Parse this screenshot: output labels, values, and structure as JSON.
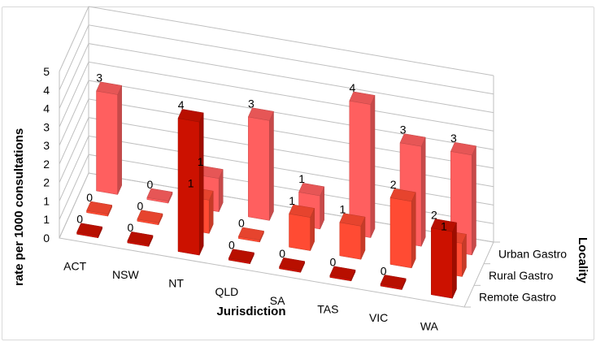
{
  "chart_data": {
    "type": "bar",
    "categories": [
      "ACT",
      "NSW",
      "NT",
      "QLD",
      "SA",
      "TAS",
      "VIC",
      "WA"
    ],
    "series": [
      {
        "name": "Remote Gastro",
        "color": "#cc1100",
        "values": [
          0,
          0,
          4,
          0,
          0,
          0,
          0,
          2
        ]
      },
      {
        "name": "Rural Gastro",
        "color": "#ff4b33",
        "values": [
          0,
          0,
          1,
          0,
          1,
          1,
          2,
          1
        ]
      },
      {
        "name": "Urban Gastro",
        "color": "#ff5f5f",
        "values": [
          3,
          0,
          1,
          3,
          1,
          4,
          3,
          3
        ]
      }
    ],
    "data_labels": {
      "Remote Gastro": [
        "0",
        "0",
        "4",
        "0",
        "0",
        "0",
        "0",
        "2"
      ],
      "Rural Gastro": [
        "0",
        "0",
        "1",
        "0",
        "1",
        "1",
        "2",
        "1"
      ],
      "Urban Gastro": [
        "3",
        "0",
        "1",
        "3",
        "1",
        "4",
        "3",
        "3"
      ]
    },
    "y_ticks": [
      "0",
      "1",
      "1",
      "2",
      "2",
      "3",
      "3",
      "4",
      "4",
      "5"
    ],
    "ylim": [
      0,
      5
    ],
    "xlabel": "Jurisdiction",
    "ylabel": "rate per 1000 consultations",
    "zlabel": "Locality",
    "grid": true
  }
}
